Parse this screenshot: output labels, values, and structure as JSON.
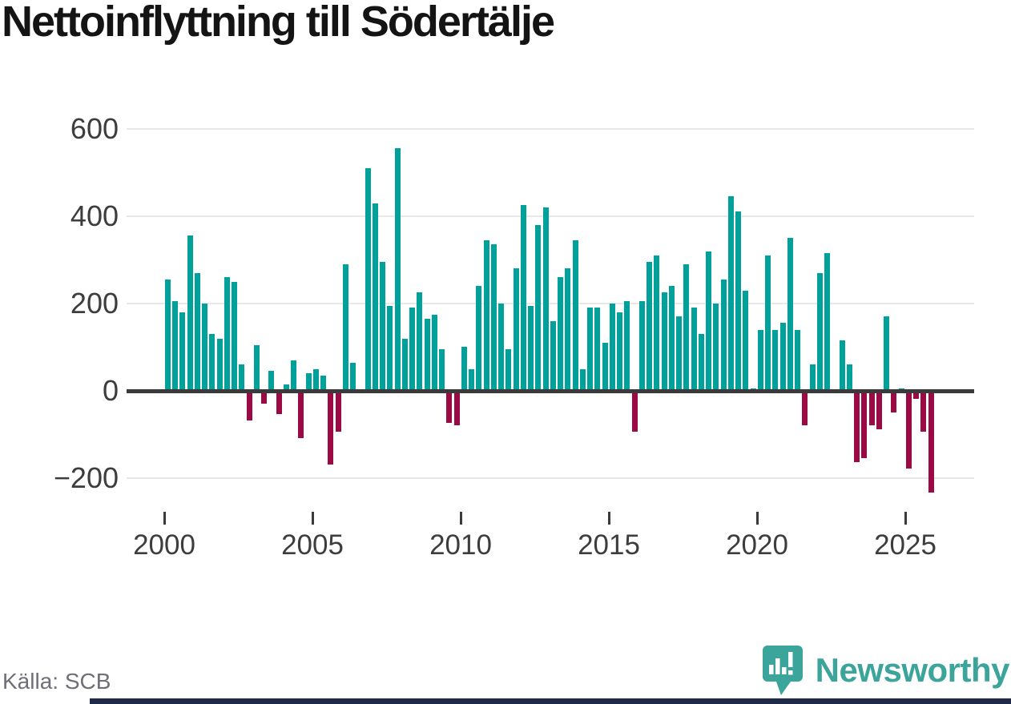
{
  "title": "Nettoinflyttning till Södertälje",
  "source": "Källa: SCB",
  "footer": {
    "brand": "Newsworthy",
    "logo_icon": "newsworthy-speech-bubble-chart-icon"
  },
  "colors": {
    "positive_bar": "#00a09b",
    "negative_bar": "#9c0a46",
    "axis": "#3a3a3a",
    "grid": "#e8e8e8",
    "tick_label": "#3d3d3d",
    "title_text": "#141414",
    "source_text": "#6f6f79",
    "brand_teal": "#3ba49b",
    "footer_strip": "#202a48",
    "background": "#ffffff"
  },
  "chart_data": {
    "type": "bar",
    "title": "Nettoinflyttning till Södertälje",
    "unit": "persons per quarter",
    "grid": true,
    "legend": false,
    "ylim": [
      -260,
      620
    ],
    "y_ticks": [
      600,
      400,
      200,
      0,
      -200
    ],
    "y_tick_labels": [
      "600",
      "400",
      "200",
      "0",
      "−200"
    ],
    "x_tick_labels": [
      "2000",
      "2005",
      "2010",
      "2015",
      "2020",
      "2025"
    ],
    "quarters": [
      {
        "year": 2000,
        "values": [
          255,
          205,
          180,
          355
        ]
      },
      {
        "year": 2001,
        "values": [
          270,
          200,
          130,
          120
        ]
      },
      {
        "year": 2002,
        "values": [
          260,
          250,
          60,
          -65
        ]
      },
      {
        "year": 2003,
        "values": [
          105,
          -25,
          45,
          -50
        ]
      },
      {
        "year": 2004,
        "values": [
          15,
          70,
          -105,
          40
        ]
      },
      {
        "year": 2005,
        "values": [
          50,
          35,
          -165,
          -90
        ]
      },
      {
        "year": 2006,
        "values": [
          290,
          65,
          0,
          510
        ]
      },
      {
        "year": 2007,
        "values": [
          430,
          295,
          195,
          555
        ]
      },
      {
        "year": 2008,
        "values": [
          120,
          190,
          225,
          165
        ]
      },
      {
        "year": 2009,
        "values": [
          175,
          95,
          -70,
          -75
        ]
      },
      {
        "year": 2010,
        "values": [
          100,
          50,
          240,
          345
        ]
      },
      {
        "year": 2011,
        "values": [
          335,
          200,
          95,
          280
        ]
      },
      {
        "year": 2012,
        "values": [
          425,
          195,
          380,
          420
        ]
      },
      {
        "year": 2013,
        "values": [
          160,
          260,
          280,
          345
        ]
      },
      {
        "year": 2014,
        "values": [
          50,
          190,
          190,
          110
        ]
      },
      {
        "year": 2015,
        "values": [
          200,
          180,
          205,
          -90
        ]
      },
      {
        "year": 2016,
        "values": [
          205,
          295,
          310,
          225
        ]
      },
      {
        "year": 2017,
        "values": [
          240,
          170,
          290,
          190
        ]
      },
      {
        "year": 2018,
        "values": [
          130,
          320,
          200,
          255
        ]
      },
      {
        "year": 2019,
        "values": [
          445,
          410,
          230,
          5
        ]
      },
      {
        "year": 2020,
        "values": [
          140,
          310,
          140,
          155
        ]
      },
      {
        "year": 2021,
        "values": [
          350,
          140,
          -75,
          60
        ]
      },
      {
        "year": 2022,
        "values": [
          270,
          315,
          0,
          115
        ]
      },
      {
        "year": 2023,
        "values": [
          60,
          -160,
          -150,
          -75
        ]
      },
      {
        "year": 2024,
        "values": [
          -85,
          170,
          -45,
          5
        ]
      },
      {
        "year": 2025,
        "values": [
          -175,
          -15,
          -90,
          -230
        ]
      }
    ]
  }
}
